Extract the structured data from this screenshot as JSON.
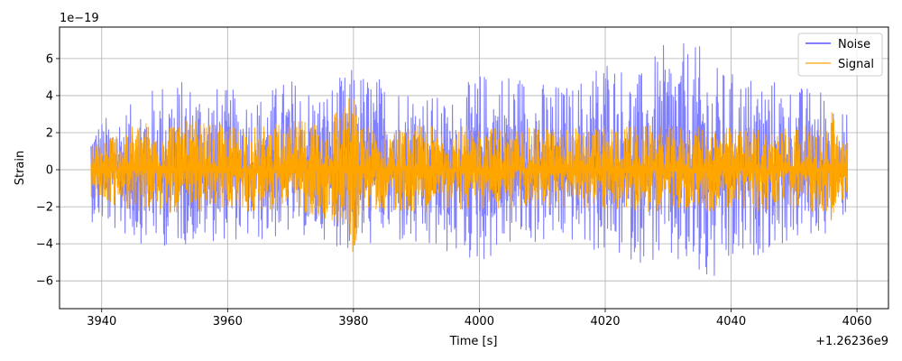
{
  "chart_data": {
    "type": "line",
    "xlabel": "Time [s]",
    "ylabel": "Strain",
    "x_offset_label": "+1.26236e9",
    "y_exponent_label": "1e−19",
    "xlim": [
      3933.3,
      4065.0
    ],
    "ylim": [
      -7.5,
      7.7
    ],
    "x_ticks": [
      3940,
      3960,
      3980,
      4000,
      4020,
      4040,
      4060
    ],
    "x_tick_labels": [
      "3940",
      "3960",
      "3980",
      "4000",
      "4020",
      "4040",
      "4060"
    ],
    "y_ticks": [
      -6,
      -4,
      -2,
      0,
      2,
      4,
      6
    ],
    "y_tick_labels": [
      "−6",
      "−4",
      "−2",
      "0",
      "2",
      "4",
      "6"
    ],
    "grid": true,
    "legend_position": "top-right",
    "x_range_data": [
      3938.3,
      4058.5
    ],
    "series": [
      {
        "name": "Noise",
        "color": "#7f7fff",
        "envelope_x": [
          3938.3,
          3945,
          3950,
          3955,
          3960,
          3965,
          3970,
          3975,
          3980,
          3985,
          3990,
          3995,
          4000,
          4005,
          4010,
          4015,
          4020,
          4025,
          4030,
          4035,
          4036.5,
          4040,
          4045,
          4050,
          4055,
          4058.5
        ],
        "envelope_max": [
          2.5,
          3.6,
          5.0,
          4.8,
          4.4,
          4.1,
          5.1,
          4.3,
          5.6,
          5.0,
          4.6,
          3.7,
          5.3,
          5.6,
          4.8,
          4.6,
          6.6,
          5.1,
          7.0,
          6.7,
          5.8,
          5.3,
          5.2,
          4.6,
          4.5,
          3.0
        ],
        "envelope_min": [
          -2.8,
          -3.9,
          -4.2,
          -4.0,
          -3.8,
          -4.0,
          -3.6,
          -3.7,
          -4.7,
          -3.7,
          -4.7,
          -4.7,
          -5.2,
          -4.2,
          -4.1,
          -4.0,
          -4.8,
          -5.0,
          -5.3,
          -6.3,
          -6.8,
          -5.7,
          -4.5,
          -4.0,
          -3.5,
          -2.4
        ]
      },
      {
        "name": "Signal",
        "color": "#ffa500",
        "envelope_x": [
          3938.3,
          3945,
          3950,
          3955,
          3960,
          3965,
          3970,
          3975,
          3979.5,
          3980.2,
          3981,
          3985,
          3990,
          3995,
          4000,
          4005,
          4010,
          4015,
          4020,
          4025,
          4030,
          4035,
          4040,
          4045,
          4050,
          4055,
          4056.3,
          4057,
          4058.5
        ],
        "envelope_max": [
          1.5,
          2.5,
          2.8,
          2.6,
          2.4,
          2.4,
          2.6,
          2.9,
          4.0,
          4.3,
          2.5,
          2.2,
          2.4,
          2.4,
          2.4,
          2.2,
          2.3,
          2.3,
          2.4,
          2.4,
          2.4,
          2.3,
          2.3,
          2.3,
          2.4,
          2.3,
          3.6,
          2.1,
          1.5
        ],
        "envelope_min": [
          -1.6,
          -2.2,
          -2.4,
          -2.3,
          -2.2,
          -2.3,
          -2.1,
          -2.6,
          -3.5,
          -5.4,
          -2.4,
          -2.2,
          -2.3,
          -2.2,
          -2.2,
          -2.2,
          -2.1,
          -2.2,
          -2.2,
          -2.3,
          -2.2,
          -2.3,
          -2.2,
          -2.3,
          -2.2,
          -2.3,
          -3.6,
          -2.0,
          -1.5
        ]
      }
    ]
  }
}
